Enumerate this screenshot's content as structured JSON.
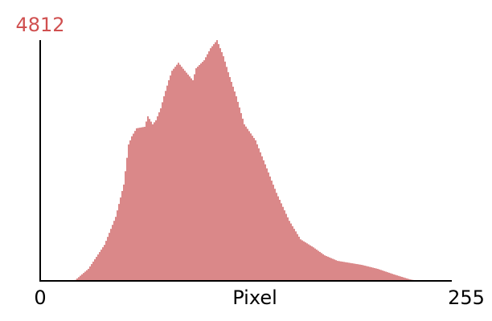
{
  "chart_data": {
    "type": "bar",
    "xlabel": "Pixel",
    "color": "#c0393b",
    "ytick_color": "#d05050",
    "x": [
      0,
      1,
      2,
      3,
      4,
      5,
      6,
      7,
      8,
      9,
      10,
      11,
      12,
      13,
      14,
      15,
      16,
      17,
      18,
      19,
      20,
      21,
      22,
      23,
      24,
      25,
      26,
      27,
      28,
      29,
      30,
      31,
      32,
      33,
      34,
      35,
      36,
      37,
      38,
      39,
      40,
      41,
      42,
      43,
      44,
      45,
      46,
      47,
      48,
      49,
      50,
      51,
      52,
      53,
      54,
      55,
      56,
      57,
      58,
      59,
      60,
      61,
      62,
      63,
      64,
      65,
      66,
      67,
      68,
      69,
      70,
      71,
      72,
      73,
      74,
      75,
      76,
      77,
      78,
      79,
      80,
      81,
      82,
      83,
      84,
      85,
      86,
      87,
      88,
      89,
      90,
      91,
      92,
      93,
      94,
      95,
      96,
      97,
      98,
      99,
      100,
      101,
      102,
      103,
      104,
      105,
      106,
      107,
      108,
      109,
      110,
      111,
      112,
      113,
      114,
      115,
      116,
      117,
      118,
      119,
      120,
      121,
      122,
      123,
      124,
      125,
      126,
      127,
      128,
      129,
      130,
      131,
      132,
      133,
      134,
      135,
      136,
      137,
      138,
      139,
      140,
      141,
      142,
      143,
      144,
      145,
      146,
      147,
      148,
      149,
      150,
      151,
      152,
      153,
      154,
      155,
      156,
      157,
      158,
      159,
      160,
      161,
      162,
      163,
      164,
      165,
      166,
      167,
      168,
      169,
      170,
      171,
      172,
      173,
      174,
      175,
      176,
      177,
      178,
      179,
      180,
      181,
      182,
      183,
      184,
      185,
      186,
      187,
      188,
      189,
      190,
      191,
      192,
      193,
      194,
      195,
      196,
      197,
      198,
      199,
      200,
      201,
      202,
      203,
      204,
      205,
      206,
      207,
      208,
      209,
      210,
      211,
      212,
      213,
      214,
      215,
      216,
      217,
      218,
      219,
      220,
      221,
      222,
      223,
      224,
      225,
      226,
      227,
      228,
      229,
      230,
      231,
      232,
      233,
      234,
      235,
      236,
      237,
      238,
      239,
      240,
      241,
      242,
      243,
      244,
      245,
      246,
      247,
      248,
      249,
      250,
      251,
      252,
      253,
      254,
      255
    ],
    "values": [
      0,
      0,
      0,
      0,
      0,
      0,
      0,
      0,
      0,
      0,
      0,
      0,
      0,
      0,
      0,
      0,
      0,
      0,
      0,
      0,
      0,
      10,
      20,
      48,
      75,
      103,
      130,
      158,
      185,
      213,
      240,
      288,
      336,
      384,
      432,
      480,
      528,
      576,
      624,
      672,
      720,
      800,
      880,
      960,
      1040,
      1120,
      1200,
      1280,
      1409,
      1538,
      1667,
      1796,
      1925,
      2192,
      2460,
      2727,
      2809,
      2890,
      2943,
      2997,
      3050,
      3056,
      3062,
      3068,
      3074,
      3080,
      3185,
      3290,
      3237,
      3183,
      3130,
      3170,
      3210,
      3290,
      3370,
      3450,
      3570,
      3690,
      3797,
      3903,
      4010,
      4105,
      4200,
      4240,
      4280,
      4320,
      4360,
      4320,
      4280,
      4240,
      4200,
      4162,
      4124,
      4086,
      4048,
      4010,
      4130,
      4250,
      4282,
      4314,
      4346,
      4378,
      4410,
      4470,
      4530,
      4590,
      4650,
      4690,
      4731,
      4771,
      4812,
      4732,
      4651,
      4571,
      4490,
      4383,
      4277,
      4170,
      4074,
      3978,
      3882,
      3786,
      3690,
      3578,
      3466,
      3354,
      3242,
      3130,
      3084,
      3039,
      2993,
      2947,
      2901,
      2856,
      2810,
      2730,
      2650,
      2570,
      2490,
      2410,
      2330,
      2249,
      2167,
      2086,
      2004,
      1923,
      1841,
      1760,
      1690,
      1620,
      1550,
      1480,
      1410,
      1340,
      1270,
      1200,
      1147,
      1094,
      1041,
      989,
      936,
      883,
      830,
      810,
      790,
      770,
      750,
      730,
      710,
      690,
      670,
      647,
      624,
      601,
      579,
      556,
      533,
      510,
      496,
      483,
      469,
      455,
      441,
      428,
      414,
      400,
      395,
      389,
      384,
      379,
      373,
      368,
      363,
      357,
      352,
      347,
      341,
      336,
      331,
      325,
      320,
      312,
      304,
      296,
      288,
      280,
      272,
      264,
      256,
      248,
      240,
      229,
      218,
      207,
      196,
      185,
      174,
      163,
      152,
      141,
      130,
      120,
      110,
      100,
      90,
      80,
      70,
      60,
      50,
      40,
      30,
      24,
      18,
      12,
      6,
      0,
      0,
      0,
      0,
      0,
      0,
      0,
      0,
      0,
      0,
      0,
      0,
      0,
      0,
      0,
      0,
      0,
      0,
      0,
      0,
      0
    ],
    "xlim": [
      0,
      255
    ],
    "xticks": [
      0,
      255
    ],
    "ylim": [
      0,
      4812
    ],
    "yticks": [
      4812
    ]
  }
}
